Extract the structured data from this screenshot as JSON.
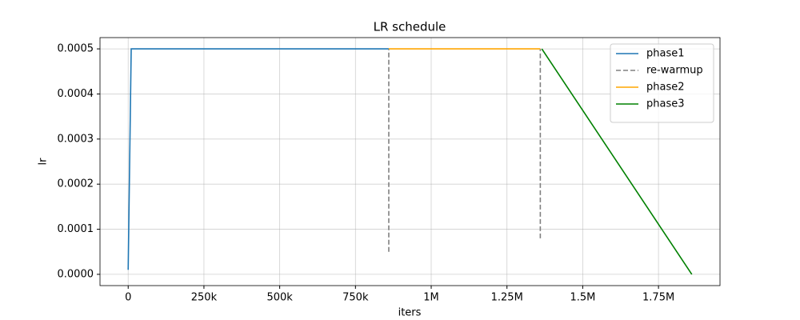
{
  "chart_data": {
    "type": "line",
    "title": "LR schedule",
    "x_label": "iters",
    "y_label": "lr",
    "xlim": [
      -93000,
      1953000
    ],
    "xticks": [
      0,
      {
        "value": 250000,
        "label": "250k"
      },
      {
        "value": 500000,
        "label": "500k"
      },
      {
        "value": 750000,
        "label": "750k"
      },
      {
        "value": 1000000,
        "label": "1M"
      },
      {
        "value": 1250000,
        "label": "1.25M"
      },
      {
        "value": 1500000,
        "label": "1.5M"
      },
      {
        "value": 1750000,
        "label": "1.75M"
      }
    ],
    "ylim": [
      -2.5e-05,
      0.000525
    ],
    "yticks": [
      {
        "value": 0,
        "label": "0.0000"
      },
      {
        "value": 0.0001,
        "label": "0.0001"
      },
      {
        "value": 0.0002,
        "label": "0.0002"
      },
      {
        "value": 0.0003,
        "label": "0.0003"
      },
      {
        "value": 0.0004,
        "label": "0.0004"
      },
      {
        "value": 0.0005,
        "label": "0.0005"
      }
    ],
    "grid": true,
    "legend": "upper right",
    "series": [
      {
        "name": "phase1",
        "color": "#1f77b4",
        "dash": false,
        "x": [
          0,
          10000,
          860000
        ],
        "values": [
          1e-05,
          0.0005,
          0.0005
        ]
      },
      {
        "name": "re-warmup",
        "color": "#808080",
        "dash": true,
        "x": [
          860000,
          860000,
          null,
          1360000,
          1360000
        ],
        "values": [
          5e-05,
          0.0005,
          null,
          8e-05,
          0.0005
        ]
      },
      {
        "name": "phase2",
        "color": "#ffa500",
        "dash": false,
        "x": [
          860000,
          1360000
        ],
        "values": [
          0.0005,
          0.0005
        ]
      },
      {
        "name": "phase3",
        "color": "#008000",
        "dash": false,
        "x": [
          1365000,
          1860000
        ],
        "values": [
          0.0005,
          0
        ]
      }
    ]
  }
}
